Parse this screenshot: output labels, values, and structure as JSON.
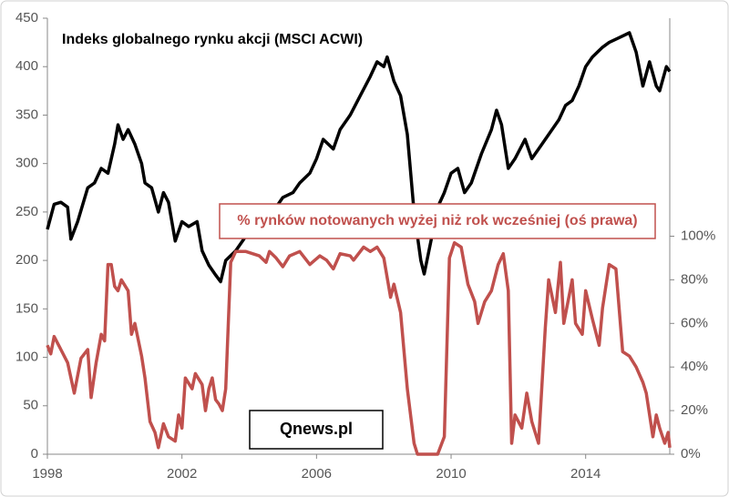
{
  "chart_data": {
    "type": "line",
    "title": "Indeks globalnego rynku akcji (MSCI ACWI)",
    "annotations": [
      "% rynków notowanych wyżej niż rok wcześniej (oś prawa)",
      "Qnews.pl"
    ],
    "xlim": [
      1998,
      2016.5
    ],
    "xticks": [
      1998,
      2002,
      2006,
      2010,
      2014
    ],
    "ylim": [
      0,
      450
    ],
    "yticks": [
      0,
      50,
      100,
      150,
      200,
      250,
      300,
      350,
      400,
      450
    ],
    "y2lim": [
      0,
      200
    ],
    "y2ticks": [
      {
        "value": 0,
        "label": "0%"
      },
      {
        "value": 20,
        "label": "20%"
      },
      {
        "value": 40,
        "label": "40%"
      },
      {
        "value": 60,
        "label": "60%"
      },
      {
        "value": 80,
        "label": "80%"
      },
      {
        "value": 100,
        "label": "100%"
      }
    ],
    "series": [
      {
        "color": "#000000",
        "x": [
          1998.0,
          1998.2,
          1998.4,
          1998.6,
          1998.7,
          1998.9,
          1999.2,
          1999.4,
          1999.6,
          1999.8,
          2000.0,
          2000.1,
          2000.25,
          2000.4,
          2000.6,
          2000.8,
          2000.9,
          2001.1,
          2001.3,
          2001.45,
          2001.6,
          2001.8,
          2002.0,
          2002.2,
          2002.45,
          2002.6,
          2002.8,
          2003.0,
          2003.15,
          2003.3,
          2003.6,
          2003.9,
          2004.2,
          2004.5,
          2004.8,
          2005.0,
          2005.3,
          2005.5,
          2005.8,
          2006.0,
          2006.2,
          2006.5,
          2006.7,
          2007.0,
          2007.3,
          2007.6,
          2007.8,
          2008.0,
          2008.1,
          2008.3,
          2008.5,
          2008.7,
          2008.9,
          2009.1,
          2009.2,
          2009.4,
          2009.6,
          2009.8,
          2010.0,
          2010.2,
          2010.4,
          2010.6,
          2010.9,
          2011.2,
          2011.35,
          2011.5,
          2011.7,
          2011.9,
          2012.2,
          2012.4,
          2012.6,
          2012.9,
          2013.2,
          2013.4,
          2013.6,
          2013.8,
          2014.0,
          2014.2,
          2014.5,
          2014.7,
          2015.0,
          2015.3,
          2015.5,
          2015.7,
          2015.9,
          2016.1,
          2016.2,
          2016.4,
          2016.5
        ],
        "values": [
          232,
          258,
          260,
          255,
          222,
          240,
          275,
          280,
          295,
          290,
          320,
          340,
          325,
          335,
          320,
          300,
          280,
          275,
          250,
          270,
          260,
          220,
          240,
          235,
          240,
          210,
          195,
          185,
          178,
          200,
          210,
          225,
          250,
          245,
          255,
          265,
          270,
          280,
          290,
          305,
          325,
          315,
          335,
          350,
          370,
          390,
          405,
          400,
          410,
          385,
          370,
          330,
          250,
          200,
          186,
          220,
          255,
          270,
          290,
          295,
          270,
          280,
          310,
          335,
          355,
          340,
          295,
          305,
          325,
          305,
          315,
          330,
          345,
          360,
          365,
          380,
          400,
          410,
          420,
          425,
          430,
          435,
          415,
          380,
          405,
          380,
          375,
          400,
          395
        ]
      },
      {
        "color": "#c0504d",
        "axis": "y2",
        "x": [
          1998.0,
          1998.1,
          1998.2,
          1998.4,
          1998.6,
          1998.8,
          1999.0,
          1999.2,
          1999.3,
          1999.45,
          1999.6,
          1999.7,
          1999.8,
          1999.9,
          2000.0,
          2000.1,
          2000.2,
          2000.4,
          2000.5,
          2000.6,
          2000.8,
          2000.9,
          2001.05,
          2001.2,
          2001.3,
          2001.45,
          2001.6,
          2001.8,
          2001.9,
          2002.0,
          2002.1,
          2002.3,
          2002.4,
          2002.6,
          2002.7,
          2002.8,
          2002.9,
          2003.0,
          2003.1,
          2003.2,
          2003.3,
          2003.45,
          2003.6,
          2003.9,
          2004.3,
          2004.5,
          2004.6,
          2004.8,
          2005.0,
          2005.2,
          2005.5,
          2005.8,
          2006.1,
          2006.3,
          2006.5,
          2006.7,
          2007.0,
          2007.1,
          2007.4,
          2007.6,
          2007.8,
          2008.0,
          2008.2,
          2008.3,
          2008.5,
          2008.7,
          2008.9,
          2009.0,
          2009.6,
          2009.8,
          2009.95,
          2010.1,
          2010.3,
          2010.5,
          2010.7,
          2010.8,
          2011.0,
          2011.2,
          2011.4,
          2011.55,
          2011.7,
          2011.8,
          2011.9,
          2012.1,
          2012.25,
          2012.4,
          2012.6,
          2012.8,
          2012.9,
          2013.1,
          2013.25,
          2013.35,
          2013.6,
          2013.7,
          2013.9,
          2014.0,
          2014.2,
          2014.4,
          2014.5,
          2014.7,
          2014.9,
          2015.1,
          2015.3,
          2015.5,
          2015.7,
          2015.8,
          2016.0,
          2016.1,
          2016.2,
          2016.35,
          2016.45,
          2016.5
        ],
        "values": [
          50,
          46,
          54,
          48,
          42,
          28,
          44,
          48,
          26,
          42,
          55,
          52,
          87,
          87,
          77,
          75,
          80,
          75,
          55,
          60,
          45,
          35,
          15,
          10,
          3,
          14,
          8,
          6,
          18,
          12,
          35,
          30,
          37,
          32,
          20,
          30,
          35,
          25,
          23,
          20,
          30,
          88,
          93,
          93,
          91,
          88,
          93,
          90,
          86,
          91,
          93,
          87,
          91,
          89,
          85,
          92,
          91,
          89,
          95,
          93,
          95,
          90,
          72,
          78,
          65,
          30,
          5,
          0,
          0,
          8,
          90,
          97,
          95,
          78,
          70,
          60,
          70,
          75,
          87,
          92,
          75,
          5,
          18,
          12,
          28,
          15,
          5,
          58,
          80,
          65,
          88,
          60,
          80,
          60,
          55,
          75,
          62,
          50,
          67,
          87,
          85,
          47,
          45,
          40,
          33,
          28,
          8,
          18,
          12,
          5,
          10,
          3
        ]
      }
    ]
  }
}
